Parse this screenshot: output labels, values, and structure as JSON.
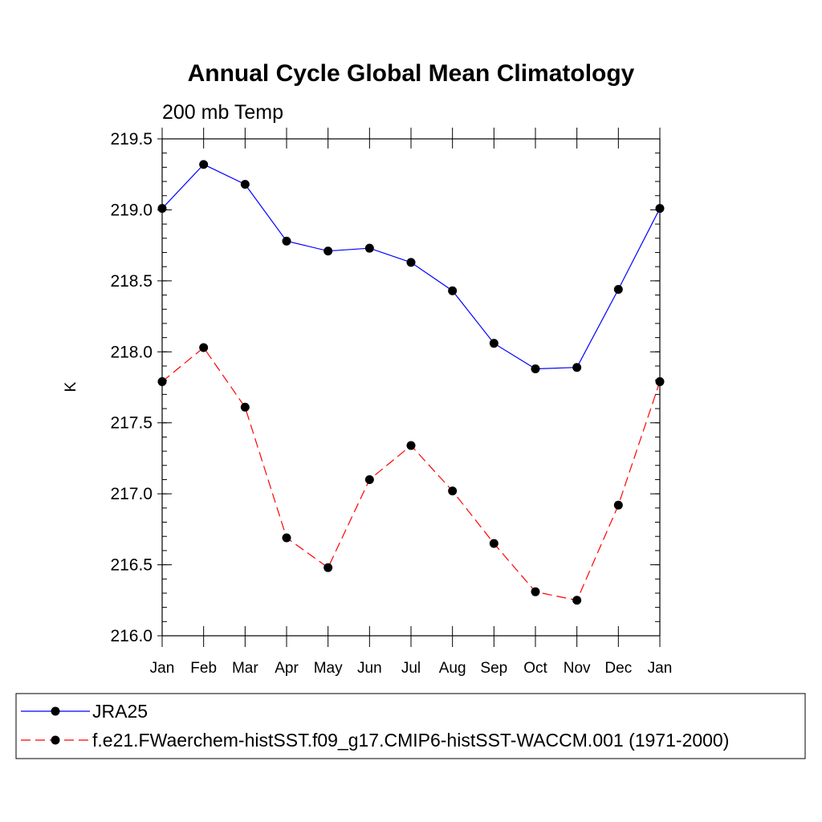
{
  "chart_data": {
    "type": "line",
    "title": "Annual Cycle Global Mean Climatology",
    "subtitle": "200 mb Temp",
    "xlabel": "",
    "ylabel": "K",
    "categories": [
      "Jan",
      "Feb",
      "Mar",
      "Apr",
      "May",
      "Jun",
      "Jul",
      "Aug",
      "Sep",
      "Oct",
      "Nov",
      "Dec",
      "Jan"
    ],
    "ylim": [
      216.0,
      219.5
    ],
    "yticks": [
      "216.0",
      "216.5",
      "217.0",
      "217.5",
      "218.0",
      "218.5",
      "219.0",
      "219.5"
    ],
    "grid": false,
    "legend_position": "bottom",
    "series": [
      {
        "name": "JRA25",
        "color": "#0000ff",
        "line_style": "solid",
        "marker": "filled-circle",
        "values": [
          219.01,
          219.32,
          219.18,
          218.78,
          218.71,
          218.73,
          218.63,
          218.43,
          218.06,
          217.88,
          217.89,
          218.44,
          219.01
        ]
      },
      {
        "name": "f.e21.FWaerchem-histSST.f09_g17.CMIP6-histSST-WACCM.001 (1971-2000)",
        "color": "#ff0000",
        "line_style": "dashed",
        "marker": "filled-circle",
        "values": [
          217.79,
          218.03,
          217.61,
          216.69,
          216.48,
          217.1,
          217.34,
          217.02,
          216.65,
          216.31,
          216.25,
          216.92,
          217.79
        ]
      }
    ]
  }
}
